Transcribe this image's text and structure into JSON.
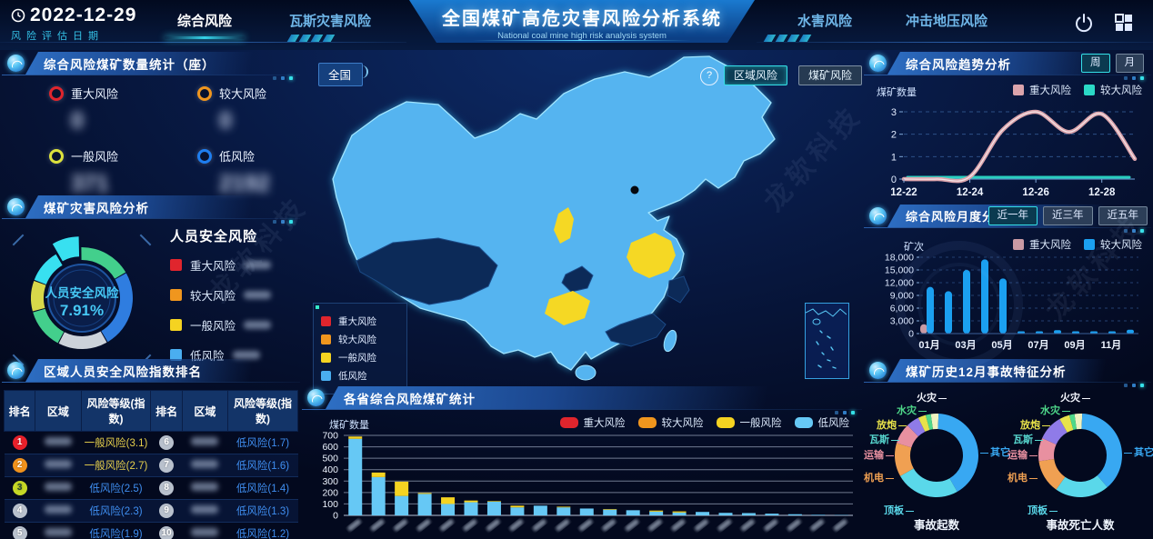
{
  "colors": {
    "accent": "#35d3e8",
    "risk_major": "#e0252d",
    "risk_larger": "#f0961e",
    "risk_general": "#f5d321",
    "risk_low": "#4aaef0"
  },
  "header": {
    "date": "2022-12-29",
    "date_label": "风险评估日期",
    "tabs_left": [
      {
        "label": "综合风险",
        "active": true
      },
      {
        "label": "瓦斯灾害风险",
        "active": false
      }
    ],
    "title": "全国煤矿高危灾害风险分析系统",
    "subtitle": "National coal mine high risk analysis system",
    "tabs_right": [
      {
        "label": "水害风险"
      },
      {
        "label": "冲击地压风险"
      }
    ]
  },
  "stats_panel": {
    "title": "综合风险煤矿数量统计（座）",
    "items": [
      {
        "label": "重大风险",
        "value": "0",
        "color": "#e0252d"
      },
      {
        "label": "较大风险",
        "value": "0",
        "color": "#f0961e"
      },
      {
        "label": "一般风险",
        "value": "371",
        "color": "#dde23c"
      },
      {
        "label": "低风险",
        "value": "2192",
        "color": "#1e7ef0"
      }
    ]
  },
  "disaster_panel": {
    "title": "煤矿灾害风险分析",
    "center_label": "人员安全风险",
    "center_value": "7.91%",
    "legend_title": "人员安全风险",
    "legend": [
      {
        "label": "重大风险",
        "color": "#e0252d"
      },
      {
        "label": "较大风险",
        "color": "#f0961e"
      },
      {
        "label": "一般风险",
        "color": "#f5d321"
      },
      {
        "label": "低风险",
        "color": "#4aaef0"
      }
    ]
  },
  "ranking_panel": {
    "title": "区域人员安全风险指数排名",
    "columns": [
      "排名",
      "区域",
      "风险等级(指数)",
      "排名",
      "区域",
      "风险等级(指数)"
    ],
    "region_blurred": true,
    "rows_left": [
      {
        "rank": "1",
        "level": "一般风险(3.1)",
        "type": "general"
      },
      {
        "rank": "2",
        "level": "一般风险(2.7)",
        "type": "general"
      },
      {
        "rank": "3",
        "level": "低风险(2.5)",
        "type": "low"
      },
      {
        "rank": "4",
        "level": "低风险(2.3)",
        "type": "low"
      },
      {
        "rank": "5",
        "level": "低风险(1.9)",
        "type": "low"
      }
    ],
    "rows_right": [
      {
        "rank": "6",
        "level": "低风险(1.7)",
        "type": "low"
      },
      {
        "rank": "7",
        "level": "低风险(1.6)",
        "type": "low"
      },
      {
        "rank": "8",
        "level": "低风险(1.4)",
        "type": "low"
      },
      {
        "rank": "9",
        "level": "低风险(1.3)",
        "type": "low"
      },
      {
        "rank": "10",
        "level": "低风险(1.2)",
        "type": "low"
      }
    ]
  },
  "map_panel": {
    "breadcrumb": "全国",
    "help": "?",
    "mode_buttons": [
      {
        "label": "区域风险",
        "active": true
      },
      {
        "label": "煤矿风险",
        "active": false
      }
    ],
    "legend": [
      {
        "label": "重大风险",
        "color": "#e0252d"
      },
      {
        "label": "较大风险",
        "color": "#f0961e"
      },
      {
        "label": "一般风险",
        "color": "#f5d321"
      },
      {
        "label": "低风险",
        "color": "#4aaef0"
      }
    ]
  },
  "trend_panel": {
    "title": "综合风险趋势分析",
    "buttons": [
      {
        "label": "周",
        "active": true
      },
      {
        "label": "月",
        "active": false
      }
    ]
  },
  "monthly_panel": {
    "title": "综合风险月度分布",
    "buttons": [
      {
        "label": "近一年",
        "active": true
      },
      {
        "label": "近三年",
        "active": false
      },
      {
        "label": "近五年",
        "active": false
      }
    ]
  },
  "accident_panel": {
    "title": "煤矿历史12月事故特征分析",
    "captions": [
      "事故起数",
      "事故死亡人数"
    ]
  },
  "province_panel": {
    "title": "各省综合风险煤矿统计"
  },
  "watermark": "龙软科技",
  "chart_data": [
    {
      "id": "trend",
      "type": "line",
      "title": "综合风险趋势分析",
      "ylabel": "煤矿数量",
      "ylim": [
        0,
        3
      ],
      "yticks": [
        0,
        1,
        2,
        3
      ],
      "x": [
        "12-22",
        "12-23",
        "12-24",
        "12-25",
        "12-26",
        "12-27",
        "12-28",
        "12-29"
      ],
      "xticks": [
        "12-22",
        "12-24",
        "12-26",
        "12-28"
      ],
      "grid": "dashed",
      "legend_position": "top-right",
      "series": [
        {
          "name": "重大风险",
          "color": "#dba4ac",
          "values": [
            0,
            0,
            0.1,
            2.2,
            3,
            2.1,
            2.9,
            0.9
          ]
        },
        {
          "name": "较大风险",
          "color": "#2bd9c7",
          "values": [
            0,
            0,
            0,
            0,
            0,
            0,
            0,
            0
          ]
        }
      ]
    },
    {
      "id": "monthly",
      "type": "bar",
      "title": "综合风险月度分布",
      "ylabel": "矿次",
      "ylim": [
        0,
        18000
      ],
      "yticks": [
        0,
        3000,
        6000,
        9000,
        12000,
        15000,
        18000
      ],
      "categories": [
        "01月",
        "02月",
        "03月",
        "04月",
        "05月",
        "06月",
        "07月",
        "08月",
        "09月",
        "10月",
        "11月",
        "12月"
      ],
      "xticks_shown": [
        "01月",
        "03月",
        "05月",
        "07月",
        "09月",
        "11月"
      ],
      "series": [
        {
          "name": "重大风险",
          "color": "#c99aa4",
          "values": [
            2200,
            0,
            0,
            0,
            0,
            0,
            0,
            0,
            0,
            0,
            0,
            0
          ]
        },
        {
          "name": "较大风险",
          "color": "#1ba0f0",
          "values": [
            11000,
            10000,
            15000,
            17500,
            13000,
            200,
            150,
            800,
            300,
            100,
            150,
            900
          ]
        }
      ]
    },
    {
      "id": "province",
      "type": "stacked-bar",
      "title": "各省综合风险煤矿统计",
      "ylabel": "煤矿数量",
      "ylim": [
        0,
        700
      ],
      "yticks": [
        0,
        100,
        200,
        300,
        400,
        500,
        600,
        700
      ],
      "x_labels": "blurred",
      "grid": true,
      "legend": [
        {
          "name": "重大风险",
          "color": "#e0252d"
        },
        {
          "name": "较大风险",
          "color": "#f0961e"
        },
        {
          "name": "一般风险",
          "color": "#f5d321"
        },
        {
          "name": "低风险",
          "color": "#66c8f5"
        }
      ],
      "series": [
        {
          "name": "低风险",
          "color": "#66c8f5",
          "values": [
            670,
            335,
            170,
            188,
            100,
            115,
            120,
            70,
            85,
            70,
            60,
            50,
            45,
            33,
            25,
            30,
            22,
            20,
            15,
            10,
            5,
            3
          ]
        },
        {
          "name": "一般风险",
          "color": "#f5d321",
          "values": [
            20,
            40,
            125,
            8,
            58,
            15,
            5,
            15,
            0,
            6,
            0,
            5,
            0,
            9,
            10,
            0,
            0,
            0,
            0,
            0,
            0,
            0
          ]
        }
      ]
    },
    {
      "id": "safety_donut",
      "type": "pie",
      "center_label": "人员安全风险",
      "center_value": "7.91%",
      "segments": [
        {
          "color": "#38e0f0",
          "value": 8,
          "highlight": true
        },
        {
          "color": "#43cf8c",
          "value": 17
        },
        {
          "color": "#2f7de0",
          "value": 25
        },
        {
          "color": "#ccd2da",
          "value": 16
        },
        {
          "color": "#43cf8c",
          "value": 13
        },
        {
          "color": "#d8d84a",
          "value": 10
        },
        {
          "color": "#38e0f0",
          "value": 11
        }
      ]
    },
    {
      "id": "accidents",
      "type": "pie",
      "title": "煤矿历史12月事故特征分析",
      "categories": [
        {
          "label": "火灾",
          "color": "#eff2c0",
          "label_color": "#f5f7ff"
        },
        {
          "label": "水灾",
          "color": "#4ed88a",
          "label_color": "#4ed88a"
        },
        {
          "label": "放炮",
          "color": "#e8e24a",
          "label_color": "#e8e24a"
        },
        {
          "label": "瓦斯",
          "color": "#8f7be8",
          "label_color": "#58d8d0"
        },
        {
          "label": "运输",
          "color": "#e890a0",
          "label_color": "#e890a0"
        },
        {
          "label": "机电",
          "color": "#f0a052",
          "label_color": "#f0a052"
        },
        {
          "label": "顶板",
          "color": "#5ad8ea",
          "label_color": "#5ad8ea"
        },
        {
          "label": "其它",
          "color": "#38a8f2",
          "label_color": "#38a8f2"
        }
      ],
      "draw_order": [
        "火灾",
        "其它",
        "顶板",
        "机电",
        "运输",
        "瓦斯",
        "放炮",
        "水灾"
      ],
      "charts": [
        {
          "caption": "事故起数",
          "values": {
            "火灾": 3,
            "水灾": 2,
            "放炮": 3,
            "瓦斯": 5,
            "运输": 8,
            "机电": 13,
            "顶板": 25,
            "其它": 41
          }
        },
        {
          "caption": "事故死亡人数",
          "values": {
            "火灾": 3,
            "水灾": 2,
            "放炮": 4,
            "瓦斯": 10,
            "运输": 9,
            "机电": 13,
            "顶板": 21,
            "其它": 38
          }
        }
      ]
    }
  ]
}
